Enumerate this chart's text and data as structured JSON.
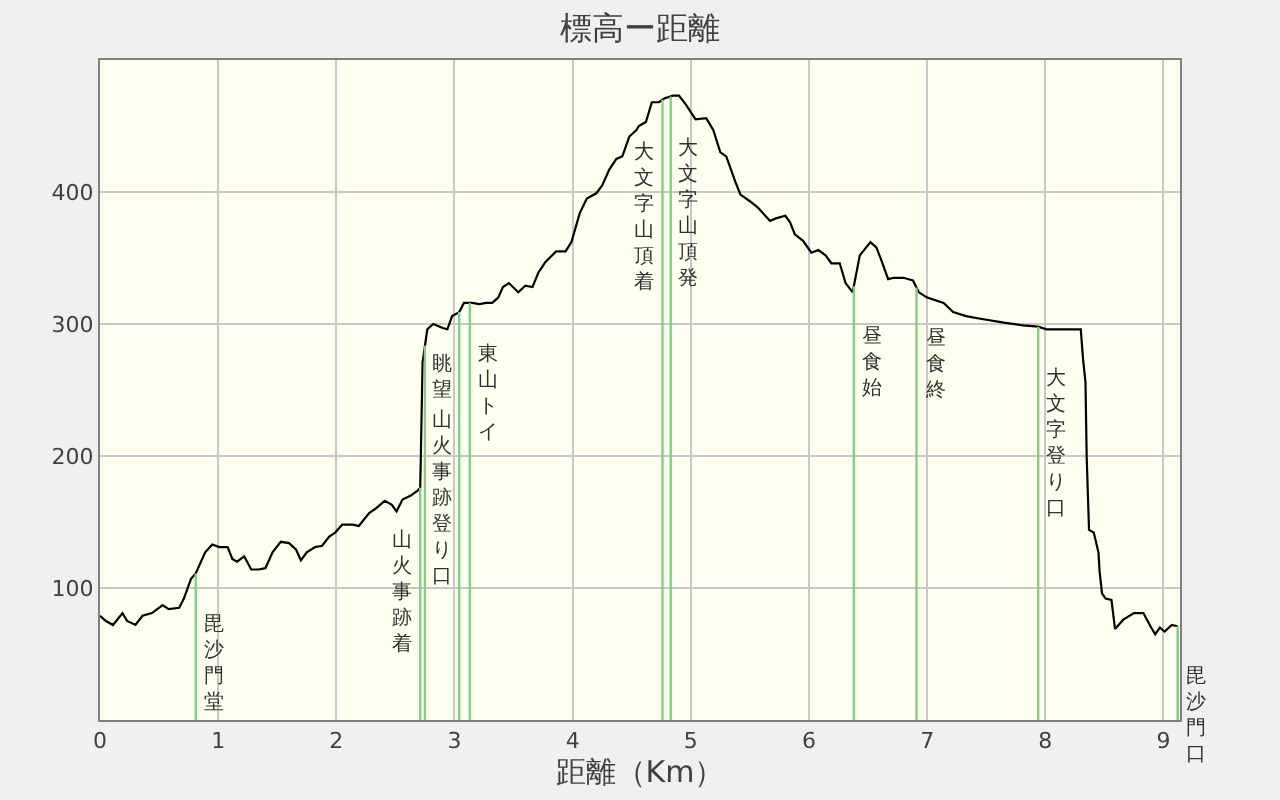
{
  "chart_data": {
    "type": "line",
    "title": "標高ー距離",
    "xlabel": "距離（Km）",
    "color": "#000000",
    "x": [
      0,
      0.05,
      0.11,
      0.19,
      0.23,
      0.3,
      0.36,
      0.44,
      0.53,
      0.58,
      0.67,
      0.71,
      0.77,
      0.81,
      0.89,
      0.95,
      1.01,
      1.08,
      1.12,
      1.16,
      1.22,
      1.28,
      1.34,
      1.4,
      1.46,
      1.53,
      1.6,
      1.66,
      1.7,
      1.75,
      1.82,
      1.88,
      1.94,
      1.99,
      2.05,
      2.14,
      2.19,
      2.28,
      2.33,
      2.41,
      2.47,
      2.51,
      2.56,
      2.63,
      2.69,
      2.71,
      2.72,
      2.73,
      2.77,
      2.82,
      2.9,
      2.94,
      2.98,
      3.04,
      3.08,
      3.15,
      3.21,
      3.27,
      3.32,
      3.37,
      3.41,
      3.46,
      3.54,
      3.6,
      3.66,
      3.71,
      3.77,
      3.86,
      3.94,
      3.99,
      4.06,
      4.12,
      4.2,
      4.25,
      4.31,
      4.37,
      4.42,
      4.48,
      4.54,
      4.56,
      4.62,
      4.67,
      4.73,
      4.78,
      4.85,
      4.9,
      4.96,
      5.04,
      5.13,
      5.19,
      5.25,
      5.3,
      5.38,
      5.42,
      5.5,
      5.57,
      5.67,
      5.72,
      5.8,
      5.84,
      5.88,
      5.95,
      6.02,
      6.08,
      6.14,
      6.19,
      6.26,
      6.31,
      6.37,
      6.43,
      6.52,
      6.57,
      6.61,
      6.67,
      6.72,
      6.8,
      6.88,
      6.93,
      7.0,
      7.14,
      7.22,
      7.33,
      7.45,
      7.65,
      7.81,
      7.94,
      8.01,
      8.26,
      8.3,
      8.32,
      8.34,
      8.35,
      8.37,
      8.41,
      8.45,
      8.46,
      8.48,
      8.51,
      8.56,
      8.59,
      8.66,
      8.75,
      8.83,
      8.89,
      8.93,
      8.97,
      9.01,
      9.07,
      9.12
    ],
    "values": [
      79,
      75,
      72,
      81,
      75,
      72,
      79,
      81,
      87,
      84,
      85,
      92,
      107,
      111,
      127,
      133,
      131,
      131,
      122,
      120,
      124,
      114,
      114,
      115,
      127,
      135,
      134,
      129,
      121,
      127,
      131,
      132,
      139,
      142,
      148,
      148,
      147,
      157,
      160,
      166,
      163,
      158,
      167,
      170,
      174,
      176,
      223,
      271,
      296,
      300,
      297,
      296,
      306,
      309,
      316,
      316,
      315,
      316,
      316,
      320,
      328,
      331,
      324,
      329,
      328,
      339,
      347,
      355,
      355,
      362,
      384,
      395,
      399,
      405,
      417,
      425,
      427,
      442,
      447,
      450,
      453,
      468,
      468,
      471,
      473,
      473,
      466,
      455,
      456,
      447,
      430,
      427,
      407,
      398,
      393,
      388,
      378,
      380,
      382,
      377,
      368,
      363,
      354,
      356,
      352,
      346,
      346,
      331,
      324,
      352,
      362,
      358,
      349,
      334,
      335,
      335,
      333,
      324,
      320,
      316,
      309,
      306,
      304,
      301,
      299,
      298,
      296,
      296,
      296,
      273,
      256,
      200,
      144,
      142,
      127,
      112,
      96,
      92,
      91,
      69,
      76,
      81,
      81,
      71,
      65,
      70,
      67,
      72,
      71
    ],
    "xlim": [
      0,
      9.14
    ],
    "ylim": [
      0,
      500
    ],
    "xticks": [
      0,
      1,
      2,
      3,
      4,
      5,
      6,
      7,
      8,
      9
    ],
    "yticks": [
      100,
      200,
      300,
      400
    ],
    "grid": true,
    "ref_lines": [
      {
        "axis": "x",
        "value": 0.81,
        "label": "毘沙門堂",
        "color": "#88cc88"
      },
      {
        "axis": "x",
        "value": 2.71,
        "label": "山火事跡着",
        "color": "#88cc88"
      },
      {
        "axis": "x",
        "value": 2.75,
        "label": "山火事跡登り口",
        "color": "#88cc88"
      },
      {
        "axis": "x",
        "value": 3.04,
        "label": "眺望",
        "color": "#88cc88"
      },
      {
        "axis": "x",
        "value": 3.13,
        "label": "東山トイ",
        "color": "#88cc88"
      },
      {
        "axis": "x",
        "value": 4.76,
        "label": "大文字山頂着",
        "color": "#88cc88"
      },
      {
        "axis": "x",
        "value": 4.83,
        "label": "大文字山頂発",
        "color": "#88cc88"
      },
      {
        "axis": "x",
        "value": 6.38,
        "label": "昼食始",
        "color": "#88cc88"
      },
      {
        "axis": "x",
        "value": 6.91,
        "label": "昼食終",
        "color": "#88cc88"
      },
      {
        "axis": "x",
        "value": 7.94,
        "label": "大文字登り口",
        "color": "#88cc88"
      },
      {
        "axis": "x",
        "value": 9.12,
        "label": "毘沙門口",
        "color": "#88cc88"
      }
    ]
  }
}
